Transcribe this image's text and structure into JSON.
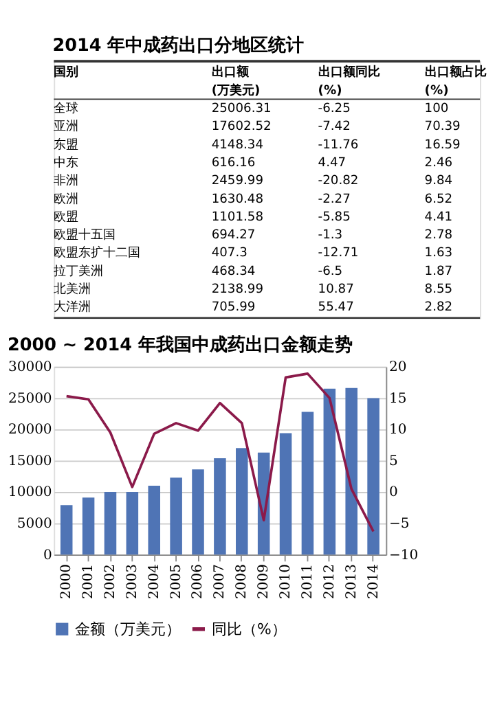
{
  "chart_data": [
    {
      "type": "other",
      "title": "2014 年中成药出口分地区统计",
      "ylabel": "国别",
      "data_labels": true,
      "categories": [
        "全球",
        "亚洲",
        "东盟",
        "中东",
        "非洲",
        "欧洲",
        "欧盟",
        "欧盟十五国",
        "欧盟东扩十二国",
        "拉丁美洲",
        "北美洲",
        "大洋洲"
      ],
      "series": [
        {
          "name": "出口额(万美元)",
          "values": [
            25006.31,
            17602.52,
            4148.34,
            616.16,
            2459.99,
            1630.48,
            1101.58,
            694.27,
            407.3,
            468.34,
            2138.99,
            705.99
          ]
        },
        {
          "name": "出口额同比(%)",
          "values": [
            -6.25,
            -7.42,
            -11.76,
            4.47,
            -20.82,
            -2.27,
            -5.85,
            -1.3,
            -12.71,
            -6.5,
            10.87,
            55.47
          ]
        },
        {
          "name": "出口额占比(%)",
          "values": [
            100,
            70.39,
            16.59,
            2.46,
            9.84,
            6.52,
            4.41,
            2.78,
            1.63,
            1.87,
            8.55,
            2.82
          ]
        }
      ]
    },
    {
      "type": "bar",
      "title": "2000 ~ 2014 年我国中成药出口金额走势",
      "categories": [
        "2000",
        "2001",
        "2002",
        "2003",
        "2004",
        "2005",
        "2006",
        "2007",
        "2008",
        "2009",
        "2010",
        "2011",
        "2012",
        "2013",
        "2014"
      ],
      "series": [
        {
          "name": "金额（万美元）",
          "color": "#4f74b5",
          "values": [
            7900,
            9100,
            10000,
            10000,
            11000,
            12300,
            13600,
            15400,
            17000,
            16300,
            19400,
            22800,
            26500,
            26600,
            25000
          ]
        },
        {
          "name": "同比（%）",
          "type": "line",
          "axis": "y2",
          "color": "#8b1a4a",
          "values": [
            15.3,
            14.8,
            9.5,
            0.8,
            9.3,
            11.0,
            9.8,
            14.2,
            11.0,
            -4.5,
            18.3,
            18.9,
            15.0,
            0.5,
            -6.3
          ]
        }
      ],
      "ylim": [
        0,
        30000
      ],
      "yticks": [
        0,
        5000,
        10000,
        15000,
        20000,
        25000,
        30000
      ],
      "y2lim": [
        -10,
        20
      ],
      "y2ticks": [
        -10,
        -5,
        0,
        5,
        10,
        15,
        20
      ],
      "grid": "y",
      "legend": "bottom"
    }
  ]
}
